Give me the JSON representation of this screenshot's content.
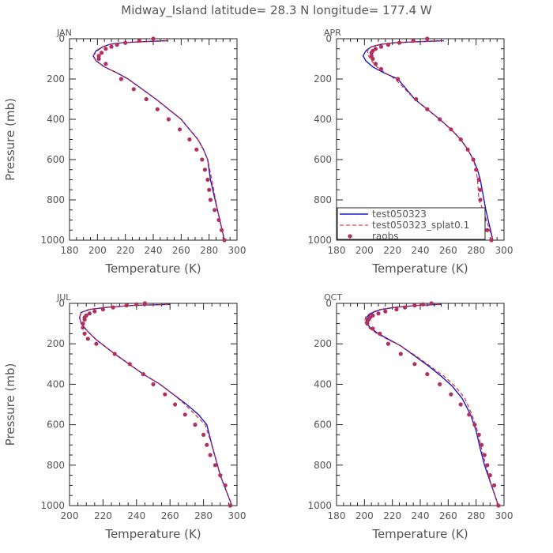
{
  "title": "Midway_Island  latitude= 28.3 N longitude= 177.4 W",
  "colors": {
    "model_a": "#1a1acc",
    "model_b": "#dd2222",
    "obs": "#b03060"
  },
  "chart_data": [
    {
      "type": "line",
      "panel": "JAN",
      "xlabel": "Temperature (K)",
      "ylabel": "Pressure (mb)",
      "xlim": [
        180,
        300
      ],
      "ylim": [
        1000,
        0
      ],
      "xticks": [
        180,
        200,
        220,
        240,
        260,
        280,
        300
      ],
      "yticks": [
        0,
        200,
        400,
        600,
        800,
        1000
      ],
      "series": [
        {
          "name": "test050323",
          "kind": "line",
          "x": [
            250,
            232,
            218,
            209,
            204,
            199,
            197,
            199,
            205,
            214,
            222,
            232,
            242,
            251,
            260,
            266,
            272,
            276,
            279,
            281,
            286,
            291
          ],
          "y": [
            10,
            15,
            20,
            28,
            40,
            60,
            85,
            110,
            140,
            170,
            200,
            250,
            300,
            350,
            400,
            450,
            500,
            550,
            600,
            700,
            850,
            1000
          ]
        },
        {
          "name": "test050323_splat0.1",
          "kind": "line",
          "x": [
            251,
            233,
            218,
            209,
            204,
            200,
            197,
            199,
            205,
            214,
            222,
            232,
            242,
            251,
            260,
            266,
            272,
            276,
            279,
            282,
            286,
            291
          ],
          "y": [
            10,
            15,
            20,
            28,
            40,
            60,
            85,
            110,
            140,
            170,
            200,
            250,
            300,
            350,
            400,
            450,
            500,
            550,
            600,
            700,
            850,
            1000
          ]
        },
        {
          "name": "raobs",
          "kind": "scatter",
          "x": [
            240,
            230,
            220,
            214,
            210,
            206,
            203,
            201,
            201,
            206,
            217,
            226,
            235,
            243,
            251,
            259,
            266,
            271,
            275,
            277,
            279,
            280,
            281,
            284,
            287,
            289,
            291
          ],
          "y": [
            0,
            10,
            20,
            30,
            40,
            50,
            70,
            85,
            100,
            125,
            200,
            250,
            300,
            350,
            400,
            450,
            500,
            550,
            600,
            650,
            700,
            750,
            800,
            850,
            900,
            950,
            1000
          ]
        }
      ]
    },
    {
      "type": "line",
      "panel": "APR",
      "xlabel": "Temperature (K)",
      "ylabel": "",
      "xlim": [
        180,
        300
      ],
      "ylim": [
        1000,
        0
      ],
      "xticks": [
        180,
        200,
        220,
        240,
        260,
        280,
        300
      ],
      "yticks": [
        0,
        200,
        400,
        600,
        800,
        1000
      ],
      "series": [
        {
          "name": "test050323",
          "kind": "line",
          "x": [
            257,
            238,
            222,
            212,
            205,
            201,
            199,
            201,
            206,
            214,
            224,
            236,
            245,
            254,
            262,
            269,
            274,
            278,
            281,
            283,
            287,
            292
          ],
          "y": [
            10,
            15,
            20,
            28,
            40,
            60,
            85,
            110,
            140,
            170,
            200,
            300,
            350,
            400,
            450,
            500,
            550,
            600,
            650,
            700,
            850,
            1000
          ]
        },
        {
          "name": "test050323_splat0.1",
          "kind": "line",
          "x": [
            256,
            237,
            221,
            211,
            205,
            202,
            203,
            205,
            209,
            215,
            222,
            236,
            245,
            254,
            262,
            269,
            274,
            278,
            280,
            281,
            282,
            285,
            292
          ],
          "y": [
            10,
            15,
            20,
            28,
            40,
            60,
            85,
            110,
            140,
            170,
            200,
            300,
            350,
            400,
            450,
            500,
            550,
            600,
            650,
            700,
            800,
            850,
            1000
          ]
        },
        {
          "name": "raobs",
          "kind": "scatter",
          "x": [
            245,
            235,
            225,
            217,
            212,
            208,
            206,
            205,
            205,
            206,
            208,
            212,
            224,
            237,
            245,
            254,
            262,
            269,
            274,
            278,
            280,
            282,
            283,
            283,
            284,
            286,
            288,
            291
          ],
          "y": [
            0,
            10,
            20,
            30,
            40,
            50,
            60,
            70,
            85,
            100,
            125,
            150,
            200,
            300,
            350,
            400,
            450,
            500,
            550,
            600,
            650,
            700,
            750,
            800,
            850,
            900,
            950,
            1000
          ]
        }
      ]
    },
    {
      "type": "line",
      "panel": "JUL",
      "xlabel": "Temperature (K)",
      "ylabel": "Pressure (mb)",
      "xlim": [
        200,
        300
      ],
      "ylim": [
        1000,
        0
      ],
      "xticks": [
        200,
        220,
        240,
        260,
        280,
        300
      ],
      "yticks": [
        0,
        200,
        400,
        600,
        800,
        1000
      ],
      "series": [
        {
          "name": "test050323",
          "kind": "line",
          "x": [
            260,
            238,
            222,
            212,
            207,
            206,
            207,
            211,
            216,
            227,
            244,
            254,
            262,
            270,
            277,
            282,
            285,
            290,
            297
          ],
          "y": [
            5,
            10,
            20,
            30,
            45,
            70,
            100,
            140,
            180,
            250,
            350,
            400,
            450,
            500,
            550,
            600,
            700,
            850,
            1000
          ]
        },
        {
          "name": "test050323_splat0.1",
          "kind": "line",
          "x": [
            259,
            237,
            222,
            212,
            207,
            206,
            207,
            211,
            216,
            227,
            244,
            254,
            262,
            269,
            275,
            281,
            285,
            290,
            297
          ],
          "y": [
            5,
            10,
            20,
            30,
            45,
            70,
            100,
            140,
            180,
            250,
            350,
            400,
            450,
            500,
            550,
            600,
            700,
            850,
            1000
          ]
        },
        {
          "name": "raobs",
          "kind": "scatter",
          "x": [
            245,
            240,
            234,
            226,
            220,
            215,
            212,
            210,
            209,
            209,
            208,
            208,
            209,
            211,
            216,
            227,
            236,
            244,
            250,
            257,
            263,
            269,
            275,
            280,
            282,
            284,
            287,
            290,
            293,
            296
          ],
          "y": [
            0,
            5,
            10,
            20,
            30,
            40,
            50,
            60,
            70,
            80,
            100,
            120,
            150,
            175,
            200,
            250,
            300,
            350,
            400,
            450,
            500,
            550,
            600,
            650,
            700,
            750,
            800,
            850,
            900,
            1000
          ]
        }
      ]
    },
    {
      "type": "line",
      "panel": "OCT",
      "xlabel": "Temperature (K)",
      "ylabel": "",
      "xlim": [
        180,
        300
      ],
      "ylim": [
        1000,
        0
      ],
      "xticks": [
        180,
        200,
        220,
        240,
        260,
        280,
        300
      ],
      "yticks": [
        0,
        200,
        400,
        600,
        800,
        1000
      ],
      "series": [
        {
          "name": "test050323",
          "kind": "line",
          "x": [
            255,
            238,
            222,
            212,
            206,
            202,
            201,
            204,
            210,
            218,
            226,
            236,
            246,
            255,
            263,
            270,
            276,
            280,
            283,
            286,
            291,
            296
          ],
          "y": [
            5,
            10,
            20,
            30,
            45,
            65,
            90,
            120,
            150,
            180,
            210,
            260,
            310,
            360,
            410,
            470,
            550,
            630,
            720,
            800,
            900,
            1000
          ]
        },
        {
          "name": "test050323_splat0.1",
          "kind": "line",
          "x": [
            254,
            237,
            221,
            211,
            205,
            201,
            200,
            203,
            209,
            217,
            226,
            237,
            247,
            257,
            265,
            272,
            277,
            281,
            284,
            287,
            291,
            296
          ],
          "y": [
            5,
            10,
            20,
            30,
            45,
            65,
            90,
            120,
            150,
            180,
            210,
            260,
            310,
            360,
            410,
            470,
            550,
            630,
            720,
            800,
            900,
            1000
          ]
        },
        {
          "name": "raobs",
          "kind": "scatter",
          "x": [
            248,
            242,
            236,
            229,
            223,
            215,
            210,
            206,
            204,
            203,
            202,
            202,
            206,
            211,
            217,
            226,
            236,
            245,
            254,
            262,
            269,
            275,
            279,
            282,
            284,
            286,
            288,
            290,
            293,
            296
          ],
          "y": [
            0,
            5,
            10,
            20,
            30,
            40,
            50,
            60,
            70,
            80,
            90,
            100,
            125,
            150,
            200,
            250,
            300,
            350,
            400,
            450,
            500,
            550,
            600,
            650,
            700,
            750,
            800,
            850,
            900,
            1000
          ]
        }
      ]
    }
  ],
  "legend": {
    "items": [
      {
        "label": "test050323",
        "style": "solid"
      },
      {
        "label": "test050323_splat0.1",
        "style": "dashed"
      },
      {
        "label": "raobs",
        "style": "dot"
      }
    ]
  }
}
